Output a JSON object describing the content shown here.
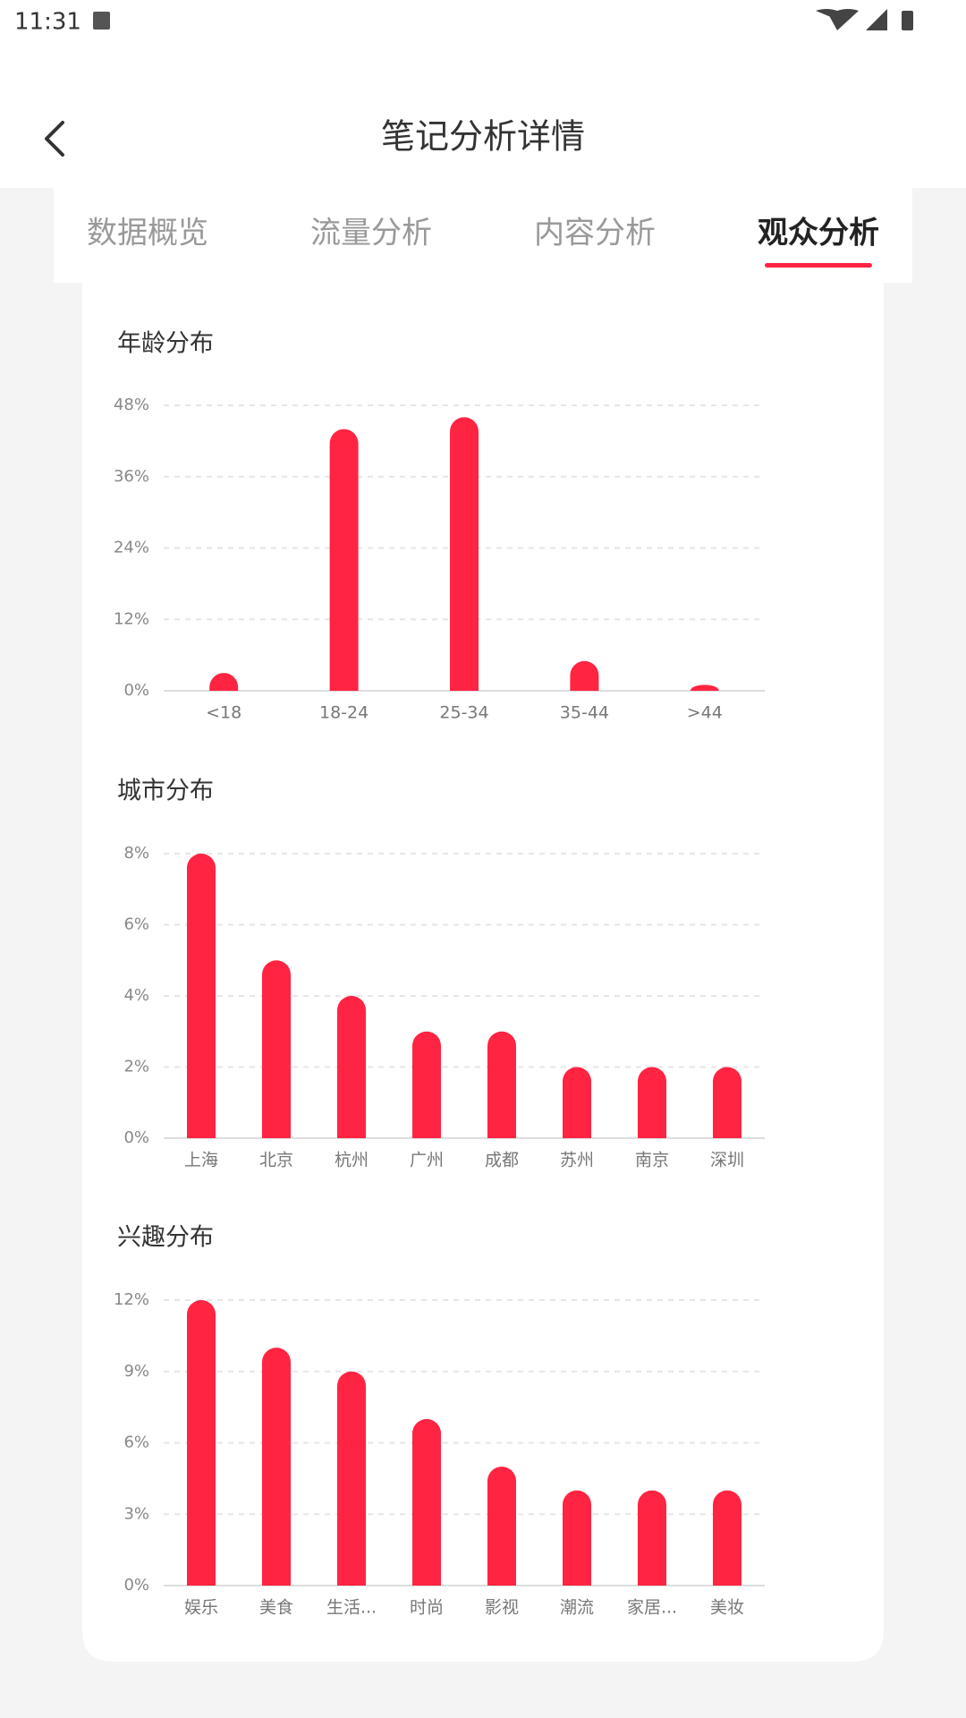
{
  "status_bar": {
    "time": "11:31"
  },
  "header": {
    "title": "笔记分析详情"
  },
  "tabs": [
    {
      "label": "数据概览",
      "selected": false
    },
    {
      "label": "流量分析",
      "selected": false
    },
    {
      "label": "内容分析",
      "selected": false
    },
    {
      "label": "观众分析",
      "selected": true
    }
  ],
  "chart_data": [
    {
      "type": "bar",
      "title": "年龄分布",
      "categories": [
        "<18",
        "18-24",
        "25-34",
        "35-44",
        ">44"
      ],
      "values": [
        3,
        44,
        46,
        5,
        1
      ],
      "color": "#ff2442",
      "ylim": [
        0,
        48
      ],
      "yticks": [
        {
          "value": 0,
          "label": "0%"
        },
        {
          "value": 12,
          "label": "12%"
        },
        {
          "value": 24,
          "label": "24%"
        },
        {
          "value": 36,
          "label": "36%"
        },
        {
          "value": 48,
          "label": "48%"
        }
      ],
      "grid": true
    },
    {
      "type": "bar",
      "title": "城市分布",
      "categories": [
        "上海",
        "北京",
        "杭州",
        "广州",
        "成都",
        "苏州",
        "南京",
        "深圳"
      ],
      "values": [
        8,
        5,
        4,
        3,
        3,
        2,
        2,
        2
      ],
      "color": "#ff2442",
      "ylim": [
        0,
        8
      ],
      "yticks": [
        {
          "value": 0,
          "label": "0%"
        },
        {
          "value": 2,
          "label": "2%"
        },
        {
          "value": 4,
          "label": "4%"
        },
        {
          "value": 6,
          "label": "6%"
        },
        {
          "value": 8,
          "label": "8%"
        }
      ],
      "grid": true
    },
    {
      "type": "bar",
      "title": "兴趣分布",
      "categories": [
        "娱乐",
        "美食",
        "生活...",
        "时尚",
        "影视",
        "潮流",
        "家居...",
        "美妆"
      ],
      "values": [
        12,
        10,
        9,
        7,
        5,
        4,
        4,
        4
      ],
      "color": "#ff2442",
      "ylim": [
        0,
        12
      ],
      "yticks": [
        {
          "value": 0,
          "label": "0%"
        },
        {
          "value": 3,
          "label": "3%"
        },
        {
          "value": 6,
          "label": "6%"
        },
        {
          "value": 9,
          "label": "9%"
        },
        {
          "value": 12,
          "label": "12%"
        }
      ],
      "grid": true
    }
  ]
}
